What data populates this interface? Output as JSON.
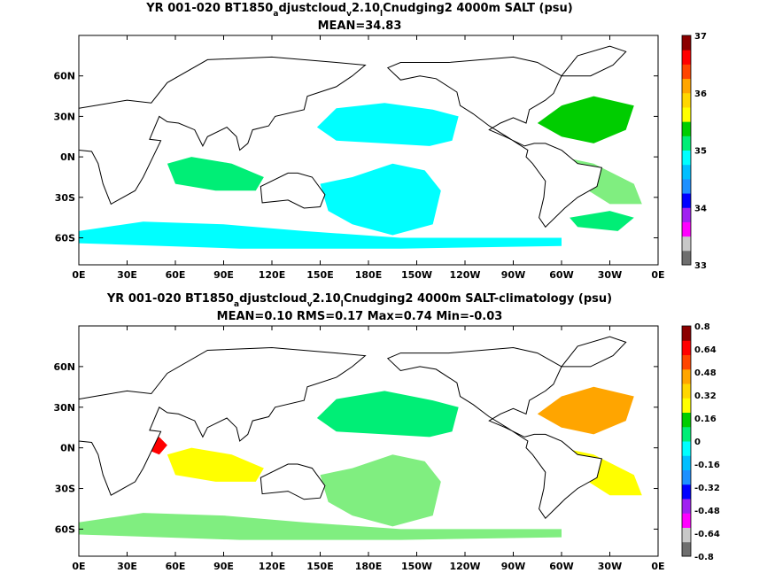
{
  "chart_data": [
    {
      "type": "heatmap",
      "title_parts": [
        {
          "text": "YR 001-020 BT1850",
          "shift": "none"
        },
        {
          "text": "a",
          "shift": "sub"
        },
        {
          "text": "djustcloud",
          "shift": "none"
        },
        {
          "text": "v",
          "shift": "sub"
        },
        {
          "text": "2.10",
          "shift": "none"
        },
        {
          "text": "l",
          "shift": "sub"
        },
        {
          "text": "Cnudging2 4000m SALT (psu)",
          "shift": "none"
        }
      ],
      "subtitle": "MEAN=34.83",
      "x_ticks": [
        "0E",
        "30E",
        "60E",
        "90E",
        "120E",
        "150E",
        "180E",
        "150W",
        "120W",
        "90W",
        "60W",
        "30W",
        "0E"
      ],
      "y_ticks": [
        "60N",
        "30N",
        "0N",
        "30S",
        "60S"
      ],
      "xlim": [
        0,
        360
      ],
      "ylim": [
        -80,
        90
      ],
      "colorbar_levels": [
        "33",
        "34",
        "35",
        "36",
        "37"
      ],
      "colorbar_colors": [
        "#6e6e6e",
        "#c8c8c8",
        "#ff00ff",
        "#a020f0",
        "#0000ff",
        "#1e90ff",
        "#00bfff",
        "#00ffff",
        "#00ee76",
        "#00cd00",
        "#ffff00",
        "#ffd700",
        "#ffa500",
        "#ff4500",
        "#ff0000",
        "#8b0000"
      ],
      "regions": [
        {
          "name": "north pacific",
          "color": "#00ffff",
          "pts": [
            [
              148,
              22
            ],
            [
              160,
              36
            ],
            [
              190,
              40
            ],
            [
              220,
              35
            ],
            [
              236,
              30
            ],
            [
              232,
              12
            ],
            [
              218,
              8
            ],
            [
              190,
              10
            ],
            [
              160,
              12
            ]
          ]
        },
        {
          "name": "south pacific",
          "color": "#00ffff",
          "pts": [
            [
              150,
              -20
            ],
            [
              170,
              -15
            ],
            [
              195,
              -5
            ],
            [
              215,
              -10
            ],
            [
              225,
              -25
            ],
            [
              220,
              -50
            ],
            [
              195,
              -58
            ],
            [
              170,
              -50
            ],
            [
              155,
              -40
            ]
          ]
        },
        {
          "name": "southern ocean",
          "color": "#00ffff",
          "pts": [
            [
              0,
              -55
            ],
            [
              40,
              -48
            ],
            [
              90,
              -50
            ],
            [
              140,
              -55
            ],
            [
              200,
              -60
            ],
            [
              260,
              -60
            ],
            [
              300,
              -60
            ],
            [
              300,
              -66
            ],
            [
              200,
              -68
            ],
            [
              100,
              -68
            ],
            [
              0,
              -64
            ]
          ]
        },
        {
          "name": "north atlantic",
          "color": "#00cd00",
          "pts": [
            [
              285,
              25
            ],
            [
              300,
              38
            ],
            [
              320,
              45
            ],
            [
              345,
              38
            ],
            [
              340,
              20
            ],
            [
              320,
              10
            ],
            [
              300,
              15
            ]
          ]
        },
        {
          "name": "tropical atlantic",
          "color": "#80ee80",
          "pts": [
            [
              300,
              0
            ],
            [
              320,
              -5
            ],
            [
              345,
              -20
            ],
            [
              350,
              -35
            ],
            [
              330,
              -35
            ],
            [
              310,
              -20
            ]
          ]
        },
        {
          "name": "indian ocean",
          "color": "#00ee76",
          "pts": [
            [
              55,
              -5
            ],
            [
              70,
              0
            ],
            [
              95,
              -5
            ],
            [
              115,
              -15
            ],
            [
              110,
              -25
            ],
            [
              85,
              -25
            ],
            [
              60,
              -20
            ]
          ]
        },
        {
          "name": "south atlantic",
          "color": "#00ee76",
          "pts": [
            [
              305,
              -45
            ],
            [
              330,
              -40
            ],
            [
              345,
              -45
            ],
            [
              335,
              -55
            ],
            [
              310,
              -52
            ]
          ]
        }
      ]
    },
    {
      "type": "heatmap",
      "title_parts": [
        {
          "text": "YR 001-020 BT1850",
          "shift": "none"
        },
        {
          "text": "a",
          "shift": "sub"
        },
        {
          "text": "djustcloud",
          "shift": "none"
        },
        {
          "text": "v",
          "shift": "sub"
        },
        {
          "text": "2.10",
          "shift": "none"
        },
        {
          "text": "l",
          "shift": "sub"
        },
        {
          "text": "Cnudging2 4000m SALT-climatology (psu)",
          "shift": "none"
        }
      ],
      "subtitle": "MEAN=0.10   RMS=0.17   Max=0.74   Min=-0.03",
      "x_ticks": [
        "0E",
        "30E",
        "60E",
        "90E",
        "120E",
        "150E",
        "180E",
        "150W",
        "120W",
        "90W",
        "60W",
        "30W",
        "0E"
      ],
      "y_ticks": [
        "60N",
        "30N",
        "0N",
        "30S",
        "60S"
      ],
      "xlim": [
        0,
        360
      ],
      "ylim": [
        -80,
        90
      ],
      "colorbar_levels": [
        "-0.8",
        "-0.64",
        "-0.48",
        "-0.32",
        "-0.16",
        "0",
        "0.16",
        "0.32",
        "0.48",
        "0.64",
        "0.8"
      ],
      "colorbar_colors": [
        "#6e6e6e",
        "#c8c8c8",
        "#ff00ff",
        "#a020f0",
        "#0000ff",
        "#1e90ff",
        "#00bfff",
        "#00ffff",
        "#00ee76",
        "#00cd00",
        "#ffff00",
        "#ffd700",
        "#ffa500",
        "#ff4500",
        "#ff0000",
        "#8b0000"
      ],
      "regions": [
        {
          "name": "north pacific",
          "color": "#00ee76",
          "pts": [
            [
              148,
              22
            ],
            [
              160,
              36
            ],
            [
              190,
              42
            ],
            [
              220,
              35
            ],
            [
              236,
              30
            ],
            [
              232,
              12
            ],
            [
              218,
              8
            ],
            [
              190,
              10
            ],
            [
              160,
              12
            ]
          ]
        },
        {
          "name": "south pacific",
          "color": "#80ee80",
          "pts": [
            [
              150,
              -20
            ],
            [
              170,
              -15
            ],
            [
              195,
              -5
            ],
            [
              215,
              -10
            ],
            [
              225,
              -25
            ],
            [
              220,
              -50
            ],
            [
              195,
              -58
            ],
            [
              170,
              -50
            ],
            [
              155,
              -40
            ]
          ]
        },
        {
          "name": "southern ocean",
          "color": "#80ee80",
          "pts": [
            [
              0,
              -55
            ],
            [
              40,
              -48
            ],
            [
              90,
              -50
            ],
            [
              140,
              -55
            ],
            [
              200,
              -60
            ],
            [
              260,
              -60
            ],
            [
              300,
              -60
            ],
            [
              300,
              -66
            ],
            [
              200,
              -68
            ],
            [
              100,
              -68
            ],
            [
              0,
              -64
            ]
          ]
        },
        {
          "name": "north atlantic",
          "color": "#ffa500",
          "pts": [
            [
              285,
              25
            ],
            [
              300,
              38
            ],
            [
              320,
              45
            ],
            [
              345,
              38
            ],
            [
              340,
              20
            ],
            [
              320,
              10
            ],
            [
              300,
              15
            ]
          ]
        },
        {
          "name": "tropical atlantic",
          "color": "#ffff00",
          "pts": [
            [
              300,
              0
            ],
            [
              320,
              -5
            ],
            [
              345,
              -20
            ],
            [
              350,
              -35
            ],
            [
              330,
              -35
            ],
            [
              310,
              -20
            ]
          ]
        },
        {
          "name": "indian ocean",
          "color": "#ffff00",
          "pts": [
            [
              55,
              -5
            ],
            [
              70,
              0
            ],
            [
              95,
              -5
            ],
            [
              115,
              -15
            ],
            [
              110,
              -25
            ],
            [
              85,
              -25
            ],
            [
              60,
              -20
            ]
          ]
        },
        {
          "name": "arabian sea",
          "color": "#ff0000",
          "pts": [
            [
              42,
              5
            ],
            [
              50,
              8
            ],
            [
              55,
              2
            ],
            [
              50,
              -5
            ],
            [
              44,
              -2
            ]
          ]
        }
      ]
    }
  ]
}
